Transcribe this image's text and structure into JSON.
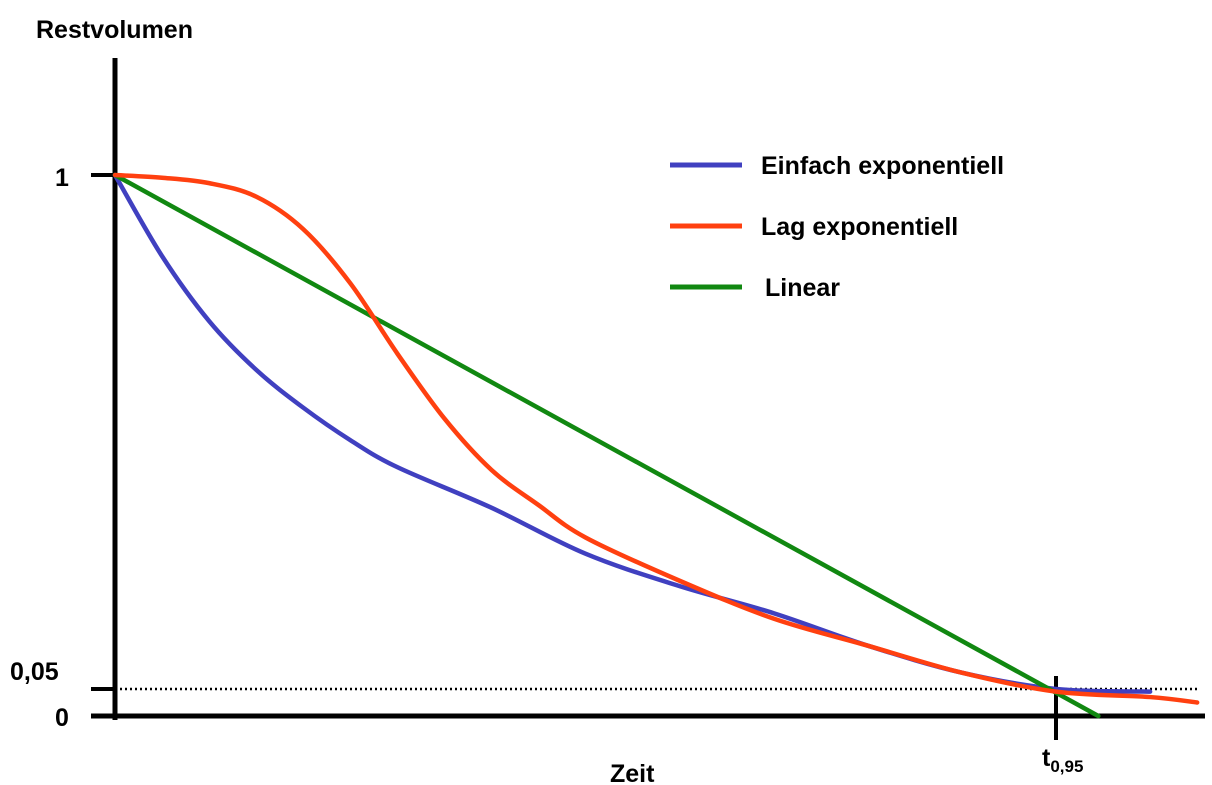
{
  "chart_data": {
    "type": "line",
    "title": "",
    "ylabel": "Restvolumen",
    "xlabel": "Zeit",
    "ylim": [
      0,
      1
    ],
    "xlim": [
      0,
      1.17
    ],
    "grid": false,
    "legend_position": "top-right",
    "y_ticks": [
      {
        "value": 0,
        "label": "0"
      },
      {
        "value": 0.05,
        "label": "0,05"
      },
      {
        "value": 1,
        "label": "1"
      }
    ],
    "x_marker": {
      "value": 1.0,
      "label_main": "t",
      "label_sub": "0,95"
    },
    "reference_line": {
      "y": 0.05,
      "style": "dotted"
    },
    "series": [
      {
        "name": "Einfach exponentiell",
        "color": "#4040C0",
        "x": [
          0,
          0.05,
          0.1,
          0.15,
          0.2,
          0.25,
          0.3,
          0.4,
          0.5,
          0.6,
          0.7,
          0.8,
          0.9,
          1.0,
          1.1
        ],
        "values": [
          1.0,
          0.85,
          0.73,
          0.64,
          0.57,
          0.51,
          0.46,
          0.385,
          0.3,
          0.24,
          0.19,
          0.13,
          0.08,
          0.05,
          0.045
        ]
      },
      {
        "name": "Lag exponentiell",
        "color": "#FF4010",
        "x": [
          0,
          0.05,
          0.1,
          0.15,
          0.2,
          0.25,
          0.3,
          0.35,
          0.4,
          0.45,
          0.5,
          0.6,
          0.7,
          0.8,
          0.9,
          1.0,
          1.1,
          1.15
        ],
        "values": [
          1.0,
          0.995,
          0.985,
          0.96,
          0.9,
          0.8,
          0.67,
          0.55,
          0.455,
          0.39,
          0.33,
          0.25,
          0.18,
          0.13,
          0.08,
          0.045,
          0.035,
          0.025
        ]
      },
      {
        "name": "Linear",
        "color": "#118811",
        "x": [
          0,
          1.045
        ],
        "values": [
          1.0,
          0.0
        ]
      }
    ]
  }
}
